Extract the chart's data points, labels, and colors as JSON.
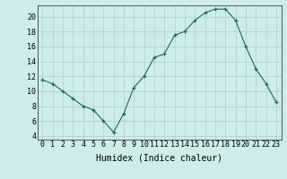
{
  "x": [
    0,
    1,
    2,
    3,
    4,
    5,
    6,
    7,
    8,
    9,
    10,
    11,
    12,
    13,
    14,
    15,
    16,
    17,
    18,
    19,
    20,
    21,
    22,
    23
  ],
  "y": [
    11.5,
    11.0,
    10.0,
    9.0,
    8.0,
    7.5,
    6.0,
    4.5,
    7.0,
    10.5,
    12.0,
    14.5,
    15.0,
    17.5,
    18.0,
    19.5,
    20.5,
    21.0,
    21.0,
    19.5,
    16.0,
    13.0,
    11.0,
    8.5
  ],
  "line_color": "#1a6b5a",
  "marker": "+",
  "bg_color": "#cdecea",
  "grid_color": "#b0d8d4",
  "axis_color": "#555555",
  "xlabel": "Humidex (Indice chaleur)",
  "xlabel_fontsize": 7,
  "tick_fontsize": 6,
  "xlim": [
    -0.5,
    23.5
  ],
  "ylim": [
    3.5,
    21.5
  ],
  "yticks": [
    4,
    6,
    8,
    10,
    12,
    14,
    16,
    18,
    20
  ],
  "xticks": [
    0,
    1,
    2,
    3,
    4,
    5,
    6,
    7,
    8,
    9,
    10,
    11,
    12,
    13,
    14,
    15,
    16,
    17,
    18,
    19,
    20,
    21,
    22,
    23
  ]
}
